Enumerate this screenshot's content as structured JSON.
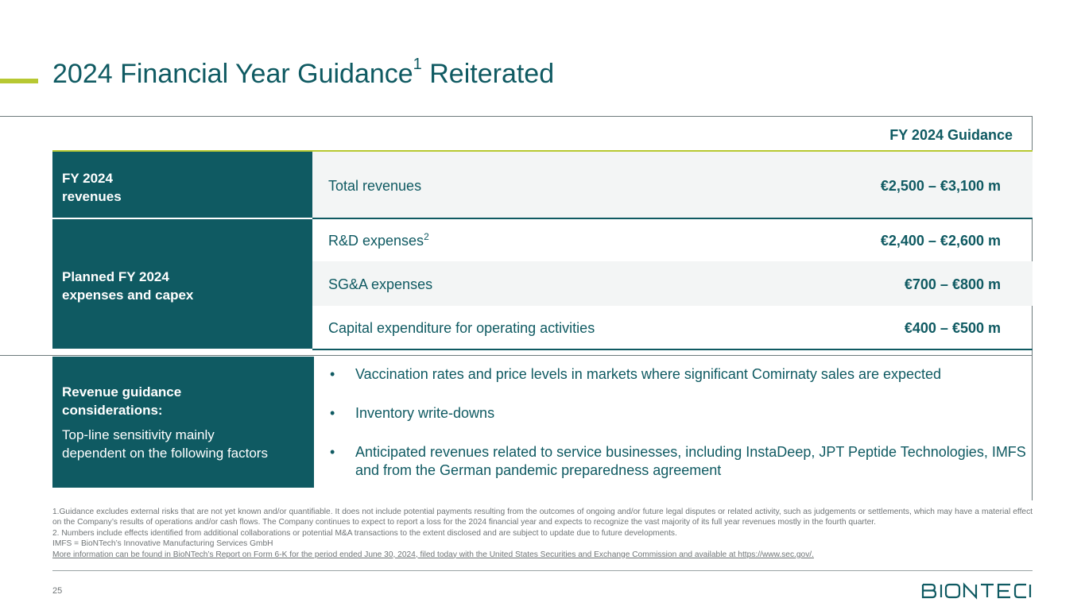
{
  "slide": {
    "title_main": "2024 Financial Year Guidance",
    "title_sup": "1",
    "title_end": " Reiterated",
    "column_header": "FY 2024 Guidance",
    "page_number": "25"
  },
  "sections": {
    "revenues_label": "FY 2024\nrevenues",
    "expenses_label": "Planned FY 2024\nexpenses and capex",
    "considerations_title": "Revenue guidance\nconsiderations:",
    "considerations_sub": "Top-line sensitivity mainly\ndependent on the following factors"
  },
  "rows": [
    {
      "label": "Total revenues",
      "sup": "",
      "value": "€2,500 – €3,100 m"
    },
    {
      "label": "R&D expenses",
      "sup": "2",
      "value": "€2,400 – €2,600 m"
    },
    {
      "label": "SG&A expenses",
      "sup": "",
      "value": "€700 – €800 m"
    },
    {
      "label": "Capital expenditure for operating activities",
      "sup": "",
      "value": "€400 – €500 m"
    }
  ],
  "bullets": [
    "Vaccination rates and price levels in markets where significant Comirnaty sales are expected",
    "Inventory write-downs",
    "Anticipated revenues related to service businesses, including InstaDeep, JPT Peptide Technologies, IMFS and from the German pandemic preparedness agreement"
  ],
  "bullet_symbol": "•",
  "footnotes": [
    "1.Guidance excludes external risks that are not yet known and/or quantifiable. It does not include potential payments resulting from the outcomes of ongoing and/or future legal disputes or related activity, such as judgements or settlements, which may have a material effect on the Company’s results of operations and/or cash flows. The Company continues to expect to report a loss for the 2024 financial year and expects to recognize the vast majority of its full year revenues mostly in the fourth quarter.",
    "2. Numbers include effects identified from additional collaborations or potential M&A transactions to the extent disclosed and are subject to update due to future developments.",
    "IMFS = BioNTech’s Innovative Manufacturing Services GmbH",
    "More information can be found in BioNTech’s Report on Form 6-K for the period ended June 30, 2024, filed today with the United States Securities and Exchange Commission and available at https://www.sec.gov/."
  ],
  "logo": {
    "text": "BIONTECH",
    "color": "#0f5a62"
  },
  "colors": {
    "primary": "#0f5a62",
    "accent": "#b7c832",
    "shade": "#f3f5f5"
  }
}
